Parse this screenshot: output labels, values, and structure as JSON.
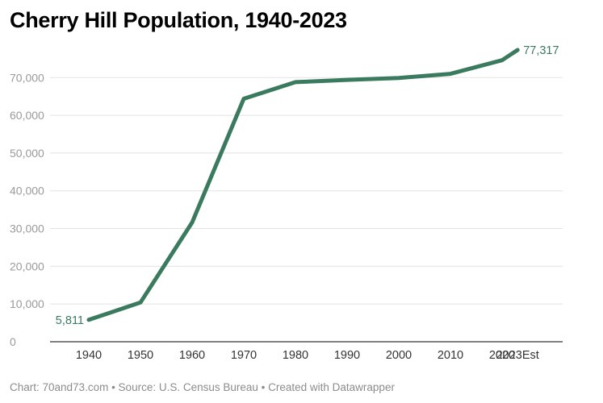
{
  "title": "Cherry Hill Population, 1940-2023",
  "footer": "Chart: 70and73.com • Source: U.S. Census Bureau • Created with Datawrapper",
  "colors": {
    "line": "#3a7a5f",
    "grid": "#e2e2e2",
    "axis": "#333333"
  },
  "chart_data": {
    "type": "line",
    "title": "Cherry Hill Population, 1940-2023",
    "xlabel": "",
    "ylabel": "",
    "categories": [
      "1940",
      "1950",
      "1960",
      "1970",
      "1980",
      "1990",
      "2000",
      "2010",
      "2020",
      "2023Est"
    ],
    "x": [
      1940,
      1950,
      1960,
      1970,
      1980,
      1990,
      2000,
      2010,
      2020,
      2023
    ],
    "series": [
      {
        "values": [
          5811,
          10400,
          31600,
          64400,
          68800,
          69400,
          69900,
          71000,
          74600,
          77317
        ]
      }
    ],
    "ylim": [
      0,
      77317
    ],
    "yticks": [
      0,
      10000,
      20000,
      30000,
      40000,
      50000,
      60000,
      70000
    ],
    "ytick_labels": [
      "0",
      "10,000",
      "20,000",
      "30,000",
      "40,000",
      "50,000",
      "60,000",
      "70,000"
    ],
    "grid": true,
    "legend": "none",
    "annotations": [
      {
        "index": 0,
        "text": "5,811"
      },
      {
        "index": 9,
        "text": "77,317"
      }
    ]
  }
}
